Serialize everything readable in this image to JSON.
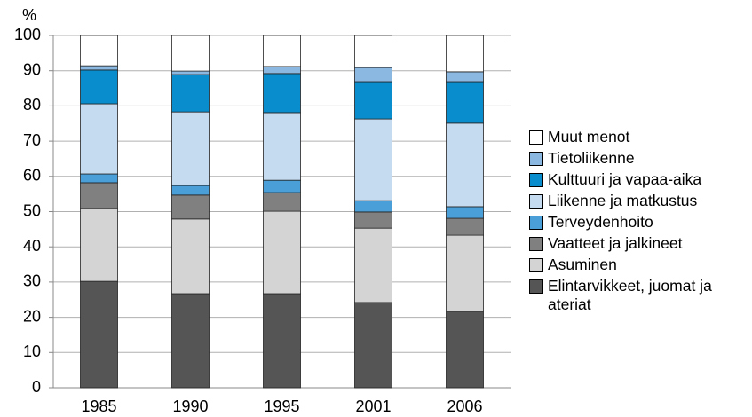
{
  "chart_data": {
    "type": "stacked_bar",
    "y_axis_label": "%",
    "categories": [
      "1985",
      "1990",
      "1995",
      "2001",
      "2006"
    ],
    "series": [
      {
        "name": "Elintarvikkeet, juomat ja ateriat",
        "color": "#555555",
        "values": [
          30.2,
          26.7,
          26.7,
          24.2,
          21.7
        ]
      },
      {
        "name": "Asuminen",
        "color": "#d4d4d4",
        "values": [
          20.7,
          21.2,
          23.4,
          21.1,
          21.6
        ]
      },
      {
        "name": "Vaatteet ja jalkineet",
        "color": "#808080",
        "values": [
          7.3,
          6.8,
          5.3,
          4.6,
          4.8
        ]
      },
      {
        "name": "Terveydenhoito",
        "color": "#4a9fd8",
        "values": [
          2.5,
          2.7,
          3.5,
          3.2,
          3.3
        ]
      },
      {
        "name": "Liikenne ja matkustus",
        "color": "#c5dcf0",
        "values": [
          19.9,
          20.9,
          19.2,
          23.2,
          23.7
        ]
      },
      {
        "name": "Kulttuuri ja vapaa-aika",
        "color": "#0a8dcc",
        "values": [
          9.6,
          10.6,
          11.1,
          10.6,
          11.8
        ]
      },
      {
        "name": "Tietoliikenne",
        "color": "#8bb8e0",
        "values": [
          1.2,
          1.0,
          2.0,
          4.0,
          2.8
        ]
      },
      {
        "name": "Muut menot",
        "color": "#ffffff",
        "values": [
          8.6,
          10.1,
          8.8,
          9.1,
          10.3
        ]
      }
    ],
    "ylim": [
      0,
      100
    ],
    "yticks": [
      0,
      10,
      20,
      30,
      40,
      50,
      60,
      70,
      80,
      90,
      100
    ],
    "grid": true,
    "legend": "right"
  }
}
